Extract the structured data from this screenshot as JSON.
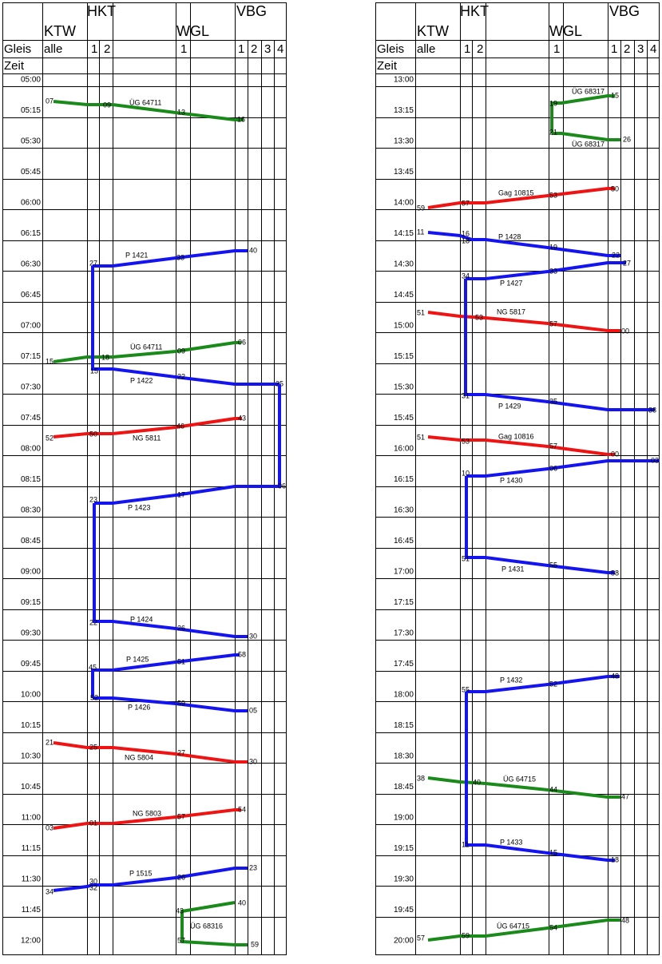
{
  "panels": [
    {
      "stations": [
        "KTW",
        "HKT",
        "WGL",
        "VBG"
      ],
      "gleis_label": "Gleis",
      "zeit_label": "Zeit",
      "tracks": [
        "alle",
        "1",
        "2",
        "1",
        "1",
        "2",
        "3",
        "4"
      ],
      "times": [
        "05:00",
        "05:15",
        "05:30",
        "05:45",
        "06:00",
        "06:15",
        "06:30",
        "06:45",
        "07:00",
        "07:15",
        "07:30",
        "07:45",
        "08:00",
        "08:15",
        "08:30",
        "08:45",
        "09:00",
        "09:15",
        "09:30",
        "09:45",
        "10:00",
        "10:15",
        "10:30",
        "10:45",
        "11:00",
        "11:15",
        "11:30",
        "11:45",
        "12:00"
      ],
      "trains": [
        {
          "name": "ÜG 64711",
          "color": "#1a8a1a",
          "times": [
            "07",
            "09",
            "13",
            "16"
          ]
        },
        {
          "name": "P 1421",
          "color": "#1414ee",
          "times": [
            "27",
            "33",
            "40"
          ]
        },
        {
          "name": "ÜG 64711",
          "color": "#1a8a1a",
          "times": [
            "15",
            "18",
            "09",
            "06"
          ]
        },
        {
          "name": "P 1422",
          "color": "#1414ee",
          "times": [
            "15",
            "22",
            "35"
          ]
        },
        {
          "name": "NG 5811",
          "color": "#ee1414",
          "times": [
            "52",
            "50",
            "46",
            "43"
          ]
        },
        {
          "name": "P 1423",
          "color": "#1414ee",
          "times": [
            "06",
            "17",
            "23"
          ]
        },
        {
          "name": "P 1424",
          "color": "#1414ee",
          "times": [
            "22",
            "26",
            "30"
          ]
        },
        {
          "name": "P 1425",
          "color": "#1414ee",
          "times": [
            "45",
            "51",
            "58"
          ]
        },
        {
          "name": "P 1426",
          "color": "#1414ee",
          "times": [
            "52",
            "59",
            "05"
          ]
        },
        {
          "name": "NG 5804",
          "color": "#ee1414",
          "times": [
            "21",
            "25",
            "27",
            "30"
          ]
        },
        {
          "name": "NG 5803",
          "color": "#ee1414",
          "times": [
            "03",
            "01",
            "57",
            "54"
          ]
        },
        {
          "name": "P 1515",
          "color": "#1414ee",
          "times": [
            "34",
            "30",
            "32",
            "26",
            "23"
          ]
        },
        {
          "name": "ÜG 68316",
          "color": "#1a8a1a",
          "times": [
            "40",
            "43",
            "57",
            "59"
          ]
        }
      ]
    },
    {
      "stations": [
        "KTW",
        "HKT",
        "WGL",
        "VBG"
      ],
      "gleis_label": "Gleis",
      "zeit_label": "Zeit",
      "tracks": [
        "alle",
        "1",
        "2",
        "1",
        "1",
        "2",
        "3",
        "4"
      ],
      "times": [
        "13:00",
        "13:15",
        "13:30",
        "13:45",
        "14:00",
        "14:15",
        "14:30",
        "14:45",
        "15:00",
        "15:15",
        "15:30",
        "15:45",
        "16:00",
        "16:15",
        "16:30",
        "16:45",
        "17:00",
        "17:15",
        "17:30",
        "17:45",
        "18:00",
        "18:15",
        "18:30",
        "18:45",
        "19:00",
        "19:15",
        "19:30",
        "19:45",
        "20:00"
      ],
      "trains": [
        {
          "name": "ÜG 68317",
          "color": "#1a8a1a",
          "times": [
            "15",
            "19"
          ]
        },
        {
          "name": "ÜG 68317",
          "color": "#1a8a1a",
          "times": [
            "21",
            "26"
          ]
        },
        {
          "name": "Gag 10815",
          "color": "#ee1414",
          "times": [
            "59",
            "57",
            "53",
            "50"
          ]
        },
        {
          "name": "P 1428",
          "color": "#1414ee",
          "times": [
            "11",
            "16",
            "18",
            "19",
            "22"
          ]
        },
        {
          "name": "P 1427",
          "color": "#1414ee",
          "times": [
            "27",
            "33",
            "34"
          ]
        },
        {
          "name": "NG 5817",
          "color": "#ee1414",
          "times": [
            "51",
            "53",
            "57",
            "00"
          ]
        },
        {
          "name": "P 1429",
          "color": "#1414ee",
          "times": [
            "31",
            "35",
            "38"
          ]
        },
        {
          "name": "Gag 10816",
          "color": "#ee1414",
          "times": [
            "51",
            "53",
            "57",
            "00"
          ]
        },
        {
          "name": "P 1430",
          "color": "#1414ee",
          "times": [
            "03",
            "06",
            "10"
          ]
        },
        {
          "name": "P 1431",
          "color": "#1414ee",
          "times": [
            "51",
            "55",
            "58"
          ]
        },
        {
          "name": "P 1432",
          "color": "#1414ee",
          "times": [
            "48",
            "52",
            "55"
          ]
        },
        {
          "name": "ÜG 64715",
          "color": "#1a8a1a",
          "times": [
            "38",
            "40",
            "44",
            "47"
          ]
        },
        {
          "name": "P 1433",
          "color": "#1414ee",
          "times": [
            "11",
            "15",
            "18"
          ]
        },
        {
          "name": "ÜG 64715",
          "color": "#1a8a1a",
          "times": [
            "57",
            "59",
            "54",
            "48"
          ]
        }
      ]
    }
  ]
}
